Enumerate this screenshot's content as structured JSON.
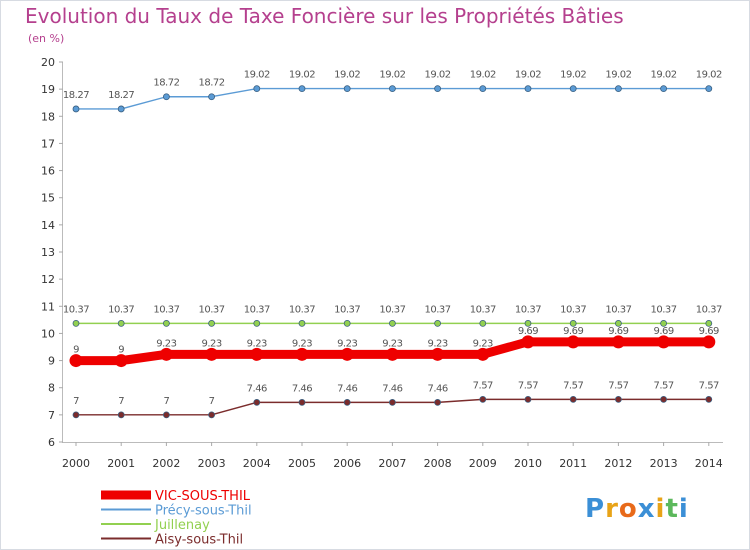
{
  "chart_data": {
    "type": "line",
    "title": "Evolution du Taux de Taxe Foncière sur les Propriétés Bâties",
    "unit_label": "(en %)",
    "xlabel": "",
    "ylabel": "(en %)",
    "x": [
      "2000",
      "2001",
      "2002",
      "2003",
      "2004",
      "2005",
      "2006",
      "2007",
      "2008",
      "2009",
      "2010",
      "2011",
      "2012",
      "2013",
      "2014"
    ],
    "ylim": [
      6,
      20
    ],
    "yticks": [
      "6",
      "7",
      "8",
      "9",
      "10",
      "11",
      "12",
      "13",
      "14",
      "15",
      "16",
      "17",
      "18",
      "19",
      "20"
    ],
    "grid": false,
    "legend_position": "bottom-left",
    "series": [
      {
        "name": "VIC-SOUS-THIL",
        "color": "#ee0000",
        "values": [
          9,
          9,
          9.23,
          9.23,
          9.23,
          9.23,
          9.23,
          9.23,
          9.23,
          9.23,
          9.69,
          9.69,
          9.69,
          9.69,
          9.69
        ],
        "labels": [
          "9",
          "9",
          "9.23",
          "9.23",
          "9.23",
          "9.23",
          "9.23",
          "9.23",
          "9.23",
          "9.23",
          "9.69",
          "9.69",
          "9.69",
          "9.69",
          "9.69"
        ]
      },
      {
        "name": "Précy-sous-Thil",
        "color": "#5b9bd5",
        "values": [
          18.27,
          18.27,
          18.72,
          18.72,
          19.02,
          19.02,
          19.02,
          19.02,
          19.02,
          19.02,
          19.02,
          19.02,
          19.02,
          19.02,
          19.02
        ],
        "labels": [
          "18.27",
          "18.27",
          "18.72",
          "18.72",
          "19.02",
          "19.02",
          "19.02",
          "19.02",
          "19.02",
          "19.02",
          "19.02",
          "19.02",
          "19.02",
          "19.02",
          "19.02"
        ]
      },
      {
        "name": "Juillenay",
        "color": "#92d050",
        "values": [
          10.37,
          10.37,
          10.37,
          10.37,
          10.37,
          10.37,
          10.37,
          10.37,
          10.37,
          10.37,
          10.37,
          10.37,
          10.37,
          10.37,
          10.37
        ],
        "labels": [
          "10.37",
          "10.37",
          "10.37",
          "10.37",
          "10.37",
          "10.37",
          "10.37",
          "10.37",
          "10.37",
          "10.37",
          "10.37",
          "10.37",
          "10.37",
          "10.37",
          "10.37"
        ]
      },
      {
        "name": "Aisy-sous-Thil",
        "color": "#7b2c2c",
        "values": [
          7,
          7,
          7,
          7,
          7.46,
          7.46,
          7.46,
          7.46,
          7.46,
          7.57,
          7.57,
          7.57,
          7.57,
          7.57,
          7.57
        ],
        "labels": [
          "7",
          "7",
          "7",
          "7",
          "7.46",
          "7.46",
          "7.46",
          "7.46",
          "7.46",
          "7.57",
          "7.57",
          "7.57",
          "7.57",
          "7.57",
          "7.57"
        ]
      }
    ]
  },
  "logo": {
    "letters": [
      "P",
      "r",
      "o",
      "x",
      "i",
      "t",
      "i"
    ],
    "colors": [
      "#3b8fd6",
      "#e8a317",
      "#e86a1a",
      "#3b8fd6",
      "#e8a317",
      "#5cb85c",
      "#3b8fd6"
    ]
  }
}
